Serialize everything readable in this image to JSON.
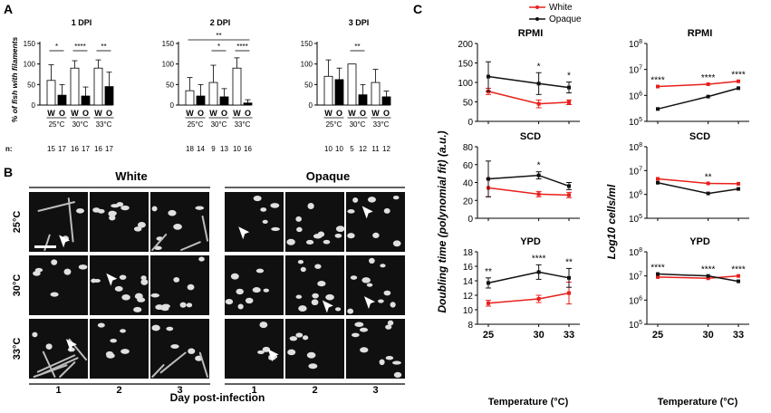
{
  "panel_a": {
    "letter": "A",
    "ylabel": "% of fish with filaments",
    "row_label": "n:",
    "charts": [
      {
        "title": "1 DPI",
        "groups": [
          "25°C",
          "30°C",
          "33°C"
        ],
        "bars": [
          {
            "label": "W",
            "value": 60,
            "err": 38,
            "n": "15"
          },
          {
            "label": "O",
            "value": 24,
            "err": 26,
            "n": "17"
          },
          {
            "label": "W",
            "value": 90,
            "err": 18,
            "n": "16"
          },
          {
            "label": "O",
            "value": 22,
            "err": 22,
            "n": "17"
          },
          {
            "label": "W",
            "value": 90,
            "err": 20,
            "n": "16"
          },
          {
            "label": "O",
            "value": 45,
            "err": 35,
            "n": "17"
          }
        ],
        "sig": [
          {
            "from": 0,
            "to": 1,
            "label": "*"
          },
          {
            "from": 2,
            "to": 3,
            "label": "****"
          },
          {
            "from": 4,
            "to": 5,
            "label": "**"
          }
        ]
      },
      {
        "title": "2 DPI",
        "groups": [
          "25°C",
          "30°C",
          "33°C"
        ],
        "bars": [
          {
            "label": "W",
            "value": 35,
            "err": 32,
            "n": "18"
          },
          {
            "label": "O",
            "value": 22,
            "err": 28,
            "n": "14"
          },
          {
            "label": "W",
            "value": 55,
            "err": 42,
            "n": "9"
          },
          {
            "label": "O",
            "value": 20,
            "err": 20,
            "n": "13"
          },
          {
            "label": "W",
            "value": 90,
            "err": 25,
            "n": "10"
          },
          {
            "label": "O",
            "value": 5,
            "err": 8,
            "n": "16"
          }
        ],
        "sig": [
          {
            "from": 0,
            "to": 5,
            "label": "**",
            "level": 2
          },
          {
            "from": 2,
            "to": 3,
            "label": "*"
          },
          {
            "from": 4,
            "to": 5,
            "label": "****"
          }
        ]
      },
      {
        "title": "3 DPI",
        "groups": [
          "25°C",
          "30°C",
          "33°C"
        ],
        "bars": [
          {
            "label": "W",
            "value": 70,
            "err": 40,
            "n": "10"
          },
          {
            "label": "O",
            "value": 62,
            "err": 28,
            "n": "10"
          },
          {
            "label": "W",
            "value": 100,
            "err": 0,
            "n": "5"
          },
          {
            "label": "O",
            "value": 25,
            "err": 25,
            "n": "12"
          },
          {
            "label": "W",
            "value": 55,
            "err": 32,
            "n": "11"
          },
          {
            "label": "O",
            "value": 20,
            "err": 14,
            "n": "12"
          }
        ],
        "sig": [
          {
            "from": 2,
            "to": 3,
            "label": "**"
          }
        ]
      }
    ]
  },
  "panel_b": {
    "letter": "B",
    "group_white": "White",
    "group_opaque": "Opaque",
    "rows": [
      "25°C",
      "30°C",
      "33°C"
    ],
    "cols": [
      "1",
      "2",
      "3",
      "1",
      "2",
      "3"
    ],
    "xlabel": "Day post-infection"
  },
  "panel_c": {
    "letter": "C",
    "legend": [
      {
        "name": "White",
        "color": "#e8201c"
      },
      {
        "name": "Opaque",
        "color": "#111111"
      }
    ],
    "left_ylabel": "Doubling time (polynomial fit) (a.u.)",
    "right_ylabel": "Log10 cells/ml",
    "xlabel": "Temperature (°C)",
    "x_ticks": [
      "25",
      "30",
      "33"
    ]
  },
  "chart_data": [
    {
      "type": "line",
      "title": "RPMI",
      "ylim": [
        0,
        200
      ],
      "y_ticks": [
        "0",
        "50",
        "100",
        "150",
        "200"
      ],
      "x": [
        25,
        30,
        33
      ],
      "series": [
        {
          "name": "White",
          "values": [
            77,
            45,
            49
          ],
          "err": [
            8,
            10,
            6
          ]
        },
        {
          "name": "Opaque",
          "values": [
            115,
            97,
            87
          ],
          "err": [
            38,
            28,
            14
          ]
        }
      ],
      "annotations": [
        "",
        "*",
        "*"
      ]
    },
    {
      "type": "line",
      "title": "SCD",
      "ylim": [
        0,
        80
      ],
      "y_ticks": [
        "0",
        "20",
        "40",
        "60",
        "80"
      ],
      "x": [
        25,
        30,
        33
      ],
      "series": [
        {
          "name": "White",
          "values": [
            34,
            27,
            26
          ],
          "err": [
            10,
            3,
            3
          ]
        },
        {
          "name": "Opaque",
          "values": [
            44,
            48,
            36
          ],
          "err": [
            20,
            4,
            4
          ]
        }
      ],
      "annotations": [
        "",
        "*",
        ""
      ]
    },
    {
      "type": "line",
      "title": "YPD",
      "ylim": [
        8,
        18
      ],
      "y_ticks": [
        "8",
        "10",
        "12",
        "14",
        "16",
        "18"
      ],
      "x": [
        25,
        30,
        33
      ],
      "series": [
        {
          "name": "White",
          "values": [
            10.9,
            11.5,
            12.3
          ],
          "err": [
            0.4,
            0.5,
            1.5
          ]
        },
        {
          "name": "Opaque",
          "values": [
            13.7,
            15.2,
            14.4
          ],
          "err": [
            0.7,
            1.0,
            1.3
          ]
        }
      ],
      "annotations": [
        "**",
        "****",
        "**"
      ]
    },
    {
      "type": "line",
      "title": "RPMI",
      "log": true,
      "ylim": [
        100000,
        100000000
      ],
      "y_ticks": [
        "10^5",
        "10^6",
        "10^7",
        "10^8"
      ],
      "x": [
        25,
        30,
        33
      ],
      "series": [
        {
          "name": "White",
          "values": [
            2200000,
            2700000,
            3500000
          ]
        },
        {
          "name": "Opaque",
          "values": [
            300000,
            900000,
            1900000
          ]
        }
      ],
      "annotations": [
        "****",
        "****",
        "****"
      ]
    },
    {
      "type": "line",
      "title": "SCD",
      "log": true,
      "ylim": [
        100000,
        100000000
      ],
      "y_ticks": [
        "10^5",
        "10^6",
        "10^7",
        "10^8"
      ],
      "x": [
        25,
        30,
        33
      ],
      "series": [
        {
          "name": "White",
          "values": [
            4500000,
            2900000,
            2800000
          ]
        },
        {
          "name": "Opaque",
          "values": [
            3100000,
            1100000,
            1700000
          ]
        }
      ],
      "annotations": [
        "",
        "**",
        ""
      ]
    },
    {
      "type": "line",
      "title": "YPD",
      "log": true,
      "ylim": [
        100000,
        100000000
      ],
      "y_ticks": [
        "10^5",
        "10^6",
        "10^7",
        "10^8"
      ],
      "x": [
        25,
        30,
        33
      ],
      "series": [
        {
          "name": "White",
          "values": [
            9000000,
            8000000,
            10000000
          ]
        },
        {
          "name": "Opaque",
          "values": [
            12000000,
            10000000,
            6000000
          ]
        }
      ],
      "annotations": [
        "****",
        "****",
        "****"
      ]
    }
  ]
}
